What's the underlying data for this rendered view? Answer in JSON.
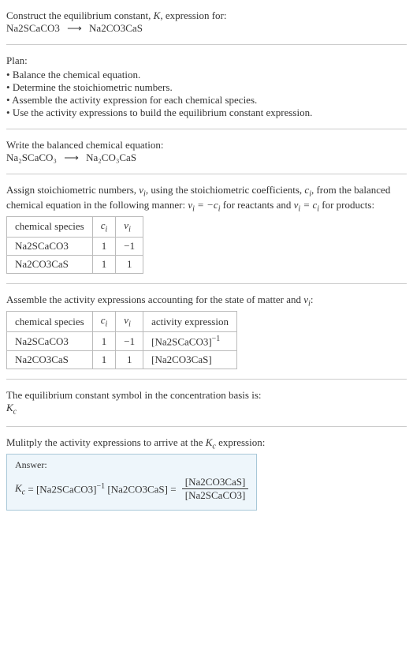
{
  "header": {
    "line1_prefix": "Construct the equilibrium constant, ",
    "K": "K",
    "line1_suffix": ", expression for:",
    "reaction_lhs": "Na2SCaCO3",
    "reaction_arrow": "⟶",
    "reaction_rhs": "Na2CO3CaS"
  },
  "plan": {
    "title": "Plan:",
    "items": [
      "Balance the chemical equation.",
      "Determine the stoichiometric numbers.",
      "Assemble the activity expression for each chemical species.",
      "Use the activity expressions to build the equilibrium constant expression."
    ]
  },
  "balanced": {
    "intro": "Write the balanced chemical equation:",
    "lhs_html": "Na₂SCaCO₃",
    "arrow": "⟶",
    "rhs_html": "Na₂CO₃CaS"
  },
  "assign": {
    "text_a": "Assign stoichiometric numbers, ",
    "nu": "ν",
    "text_b": ", using the stoichiometric coefficients, ",
    "ci": "c",
    "text_c": ", from the balanced chemical equation in the following manner: ",
    "rel1": "νᵢ = −cᵢ",
    "text_d": " for reactants and ",
    "rel2": "νᵢ = cᵢ",
    "text_e": " for products:"
  },
  "table1": {
    "headers": [
      "chemical species",
      "cᵢ",
      "νᵢ"
    ],
    "rows": [
      [
        "Na2SCaCO3",
        "1",
        "−1"
      ],
      [
        "Na2CO3CaS",
        "1",
        "1"
      ]
    ]
  },
  "assemble": {
    "text": "Assemble the activity expressions accounting for the state of matter and νᵢ:"
  },
  "table2": {
    "headers": [
      "chemical species",
      "cᵢ",
      "νᵢ",
      "activity expression"
    ],
    "rows": [
      {
        "sp": "Na2SCaCO3",
        "c": "1",
        "nu": "−1",
        "act": "[Na2SCaCO3]⁻¹"
      },
      {
        "sp": "Na2CO3CaS",
        "c": "1",
        "nu": "1",
        "act": "[Na2CO3CaS]"
      }
    ]
  },
  "symbol": {
    "line1": "The equilibrium constant symbol in the concentration basis is:",
    "kc": "K꜀"
  },
  "multiply": {
    "line": "Mulitply the activity expressions to arrive at the K꜀ expression:"
  },
  "answer": {
    "label": "Answer:",
    "kc": "K꜀",
    "eq": " = [Na2SCaCO3]⁻¹ [Na2CO3CaS] = ",
    "num": "[Na2CO3CaS]",
    "den": "[Na2SCaCO3]"
  },
  "style": {
    "border_color": "#bbb",
    "answer_bg": "#eef6fb",
    "answer_border": "#a8c8d8"
  }
}
